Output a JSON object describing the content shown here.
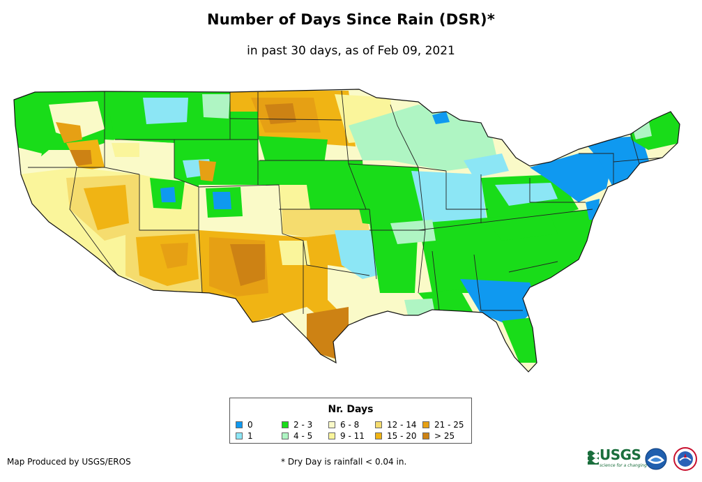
{
  "title": "Number of Days Since Rain (DSR)*",
  "subtitle": "in past 30 days, as of Feb 09, 2021",
  "legend": {
    "title": "Nr. Days",
    "items": [
      {
        "label": "0",
        "color": "#0f99f0"
      },
      {
        "label": "1",
        "color": "#8ce6f5"
      },
      {
        "label": "2 - 3",
        "color": "#19dc19"
      },
      {
        "label": "4 - 5",
        "color": "#aff5c3"
      },
      {
        "label": "6 - 8",
        "color": "#fafac8"
      },
      {
        "label": "9 - 11",
        "color": "#faf59b"
      },
      {
        "label": "12 - 14",
        "color": "#f5dc6e"
      },
      {
        "label": "15 - 20",
        "color": "#f0b414"
      },
      {
        "label": "21 - 25",
        "color": "#e6a014"
      },
      {
        "label": "> 25",
        "color": "#cd8214"
      }
    ]
  },
  "credit": "Map Produced by USGS/EROS",
  "footnote": "* Dry Day is rainfall < 0.04 in.",
  "logos": {
    "usgs": "USGS",
    "usgs_tagline": "science for a changing world",
    "noaa": "noaa-logo",
    "nws": "nws-logo"
  }
}
